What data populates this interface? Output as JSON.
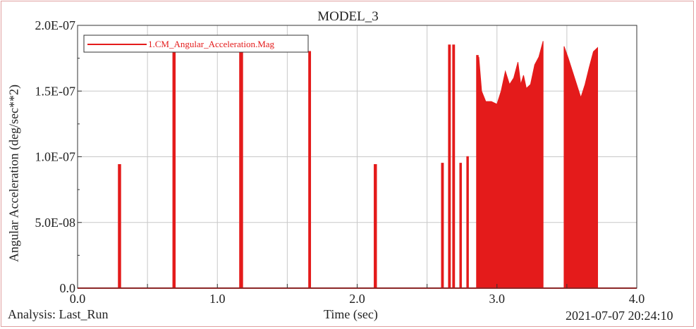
{
  "header": {
    "title": "MODEL_3"
  },
  "footer": {
    "analysis": "Analysis: Last_Run",
    "xlabel": "Time (sec)",
    "timestamp": "2021-07-07 20:24:10"
  },
  "colors": {
    "series": "#e41b1b",
    "grid": "#c8c8c8",
    "axis": "#333333"
  },
  "chart_data": {
    "type": "line",
    "title": "MODEL_3",
    "xlabel": "Time (sec)",
    "ylabel": "Angular Acceleration (deg/sec**2)",
    "xlim": [
      0.0,
      4.0
    ],
    "ylim": [
      0.0,
      2e-07
    ],
    "xticks": [
      0.0,
      1.0,
      2.0,
      3.0,
      4.0
    ],
    "xtick_labels": [
      "0.0",
      "1.0",
      "2.0",
      "3.0",
      "4.0"
    ],
    "yticks": [
      0.0,
      5e-08,
      1e-07,
      1.5e-07,
      2e-07
    ],
    "ytick_labels": [
      "0.0",
      "5.0E-08",
      "1.0E-07",
      "1.5E-07",
      "2.0E-07"
    ],
    "grid": true,
    "legend_position": "top-left",
    "series": [
      {
        "name": "1.CM_Angular_Acceleration.Mag",
        "spikes": [
          {
            "t": 0.3,
            "w": 0.015,
            "peak": 9.4e-08
          },
          {
            "t": 0.69,
            "w": 0.015,
            "peak": 1.8e-07
          },
          {
            "t": 1.17,
            "w": 0.02,
            "peak": 1.8e-07
          },
          {
            "t": 1.66,
            "w": 0.012,
            "peak": 1.8e-07
          },
          {
            "t": 2.13,
            "w": 0.015,
            "peak": 9.4e-08
          },
          {
            "t": 2.61,
            "w": 0.012,
            "peak": 9.5e-08
          },
          {
            "t": 2.66,
            "w": 0.012,
            "peak": 1.85e-07
          },
          {
            "t": 2.69,
            "w": 0.012,
            "peak": 1.85e-07
          },
          {
            "t": 2.74,
            "w": 0.01,
            "peak": 9.5e-08
          },
          {
            "t": 2.79,
            "w": 0.01,
            "peak": 1e-07
          },
          {
            "t": 2.86,
            "w": 0.01,
            "peak": 1.77e-07
          }
        ],
        "bursts": [
          {
            "t_start": 2.87,
            "t_end": 3.33,
            "envelope": [
              [
                2.87,
                1.76e-07
              ],
              [
                2.89,
                1.5e-07
              ],
              [
                2.92,
                1.42e-07
              ],
              [
                2.96,
                1.42e-07
              ],
              [
                3.0,
                1.4e-07
              ],
              [
                3.03,
                1.5e-07
              ],
              [
                3.06,
                1.65e-07
              ],
              [
                3.09,
                1.55e-07
              ],
              [
                3.12,
                1.6e-07
              ],
              [
                3.15,
                1.72e-07
              ],
              [
                3.17,
                1.55e-07
              ],
              [
                3.19,
                1.62e-07
              ],
              [
                3.21,
                1.52e-07
              ],
              [
                3.24,
                1.55e-07
              ],
              [
                3.27,
                1.7e-07
              ],
              [
                3.3,
                1.76e-07
              ],
              [
                3.33,
                1.88e-07
              ]
            ]
          },
          {
            "t_start": 3.48,
            "t_end": 3.72,
            "envelope": [
              [
                3.48,
                1.84e-07
              ],
              [
                3.51,
                1.75e-07
              ],
              [
                3.54,
                1.65e-07
              ],
              [
                3.57,
                1.55e-07
              ],
              [
                3.6,
                1.45e-07
              ],
              [
                3.63,
                1.55e-07
              ],
              [
                3.66,
                1.68e-07
              ],
              [
                3.69,
                1.8e-07
              ],
              [
                3.72,
                1.83e-07
              ]
            ]
          }
        ]
      }
    ]
  }
}
